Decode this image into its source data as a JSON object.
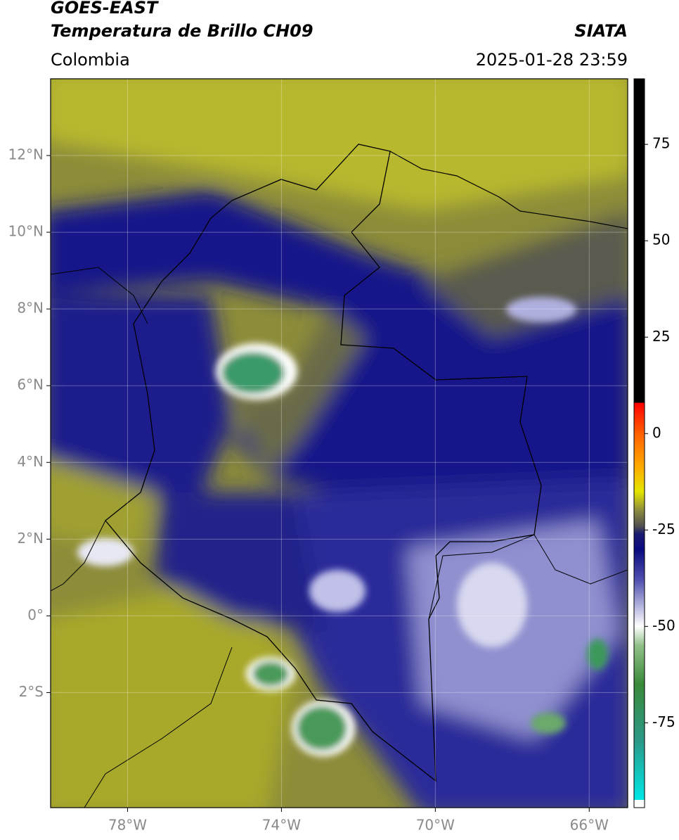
{
  "header": {
    "title": "GOES-EAST",
    "subtitle": "Temperatura de Brillo CH09",
    "source": "SIATA",
    "region": "Colombia",
    "datetime": "2025-01-28 23:59"
  },
  "map": {
    "lon_range": [
      -80,
      -65
    ],
    "lat_range": [
      -5,
      14
    ],
    "grid": true,
    "lon_ticks": [
      {
        "value": -78,
        "label": "78°W"
      },
      {
        "value": -74,
        "label": "74°W"
      },
      {
        "value": -70,
        "label": "70°W"
      },
      {
        "value": -66,
        "label": "66°W"
      }
    ],
    "lat_ticks": [
      {
        "value": 12,
        "label": "12°N"
      },
      {
        "value": 10,
        "label": "10°N"
      },
      {
        "value": 8,
        "label": "8°N"
      },
      {
        "value": 6,
        "label": "6°N"
      },
      {
        "value": 4,
        "label": "4°N"
      },
      {
        "value": 2,
        "label": "2°N"
      },
      {
        "value": 0,
        "label": "0°"
      },
      {
        "value": -2,
        "label": "2°S"
      }
    ]
  },
  "colorbar": {
    "range": [
      -97,
      92
    ],
    "ticks": [
      75,
      50,
      25,
      0,
      -25,
      -50,
      -75
    ],
    "stops": [
      {
        "value": -97,
        "color": "#ffffff"
      },
      {
        "value": -95,
        "color": "#ffffff"
      },
      {
        "value": -95,
        "color": "#00e8e8"
      },
      {
        "value": -80,
        "color": "#2a9a8a"
      },
      {
        "value": -65,
        "color": "#3a8a3a"
      },
      {
        "value": -55,
        "color": "#90c088"
      },
      {
        "value": -50,
        "color": "#ffffff"
      },
      {
        "value": -45,
        "color": "#b8b8e0"
      },
      {
        "value": -38,
        "color": "#5050b0"
      },
      {
        "value": -30,
        "color": "#0a0a80"
      },
      {
        "value": -26,
        "color": "#1a1a70"
      },
      {
        "value": -24,
        "color": "#505050"
      },
      {
        "value": -20,
        "color": "#8a8a40"
      },
      {
        "value": -15,
        "color": "#e5e500"
      },
      {
        "value": -8,
        "color": "#ffa500"
      },
      {
        "value": 0,
        "color": "#ff6000"
      },
      {
        "value": 8,
        "color": "#ff0000"
      },
      {
        "value": 8,
        "color": "#000000"
      },
      {
        "value": 92,
        "color": "#000000"
      }
    ]
  }
}
